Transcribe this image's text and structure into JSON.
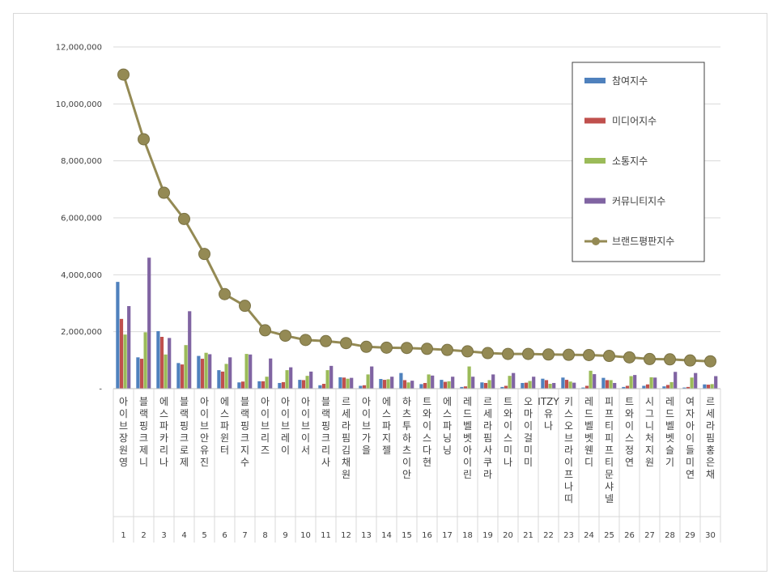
{
  "chart_data": {
    "type": "bar",
    "ylim": [
      0,
      12000000
    ],
    "y_ticks": [
      "-",
      "2,000,000",
      "4,000,000",
      "6,000,000",
      "8,000,000",
      "10,000,000",
      "12,000,000"
    ],
    "grid": "horizontal",
    "legend_position": "top-right",
    "categories": [
      "아이브 장원영",
      "블랙핑크 제니",
      "에스파 카리나",
      "블랙핑크 로제",
      "아이브 안유진",
      "에스파 윈터",
      "블랙핑크 지수",
      "아이브 리즈",
      "아이브 레이",
      "아이브 이서",
      "블랙핑크 리사",
      "르세라핌 김채원",
      "아이브 가을",
      "에스파 지젤",
      "하츠투하츠 이안",
      "트와이스 다현",
      "에스파 닝닝",
      "레드벨벳 아이린",
      "르세라핌 사쿠라",
      "트와이스 미나",
      "오마이걸 미미",
      "ITZY 유나",
      "키스오브라이프 나띠",
      "레드벨벳 웬디",
      "피프티피프티 문샤넬",
      "트와이스 정연",
      "시그니처 지원",
      "레드벨벳 슬기",
      "여자아이들 미연",
      "르세라핌 홍은채"
    ],
    "category_lines": [
      [
        "아",
        "이",
        "브",
        "장",
        "원",
        "영"
      ],
      [
        "블",
        "랙",
        "핑",
        "크",
        "제",
        "니"
      ],
      [
        "에",
        "스",
        "파",
        "카",
        "리",
        "나"
      ],
      [
        "블",
        "랙",
        "핑",
        "크",
        "로",
        "제"
      ],
      [
        "아",
        "이",
        "브",
        "안",
        "유",
        "진"
      ],
      [
        "에",
        "스",
        "파",
        "윈",
        "터"
      ],
      [
        "블",
        "랙",
        "핑",
        "크",
        "지",
        "수"
      ],
      [
        "아",
        "이",
        "브",
        "리",
        "즈"
      ],
      [
        "아",
        "이",
        "브",
        "레",
        "이"
      ],
      [
        "아",
        "이",
        "브",
        "이",
        "서"
      ],
      [
        "블",
        "랙",
        "핑",
        "크",
        "리",
        "사"
      ],
      [
        "르",
        "세",
        "라",
        "핌",
        "김",
        "채",
        "원"
      ],
      [
        "아",
        "이",
        "브",
        "가",
        "을"
      ],
      [
        "에",
        "스",
        "파",
        "지",
        "젤"
      ],
      [
        "하",
        "츠",
        "투",
        "하",
        "츠",
        "이",
        "안"
      ],
      [
        "트",
        "와",
        "이",
        "스",
        "다",
        "현"
      ],
      [
        "에",
        "스",
        "파",
        "닝",
        "닝"
      ],
      [
        "레",
        "드",
        "벨",
        "벳",
        "아",
        "이",
        "린"
      ],
      [
        "르",
        "세",
        "라",
        "핌",
        "사",
        "쿠",
        "라"
      ],
      [
        "트",
        "와",
        "이",
        "스",
        "미",
        "나"
      ],
      [
        "오",
        "마",
        "이",
        "걸",
        "미",
        "미"
      ],
      [
        "ITZY",
        "유",
        "나"
      ],
      [
        "키",
        "스",
        "오",
        "브",
        "라",
        "이",
        "프",
        "나",
        "띠"
      ],
      [
        "레",
        "드",
        "벨",
        "벳",
        "웬",
        "디"
      ],
      [
        "피",
        "프",
        "티",
        "피",
        "프",
        "티",
        "문",
        "샤",
        "넬"
      ],
      [
        "트",
        "와",
        "이",
        "스",
        "정",
        "연"
      ],
      [
        "시",
        "그",
        "니",
        "처",
        "지",
        "원"
      ],
      [
        "레",
        "드",
        "벨",
        "벳",
        "슬",
        "기"
      ],
      [
        "여",
        "자",
        "아",
        "이",
        "들",
        "미",
        "연"
      ],
      [
        "르",
        "세",
        "라",
        "핌",
        "홍",
        "은",
        "채"
      ]
    ],
    "ranks": [
      "1",
      "2",
      "3",
      "4",
      "5",
      "6",
      "7",
      "8",
      "9",
      "10",
      "11",
      "12",
      "13",
      "14",
      "15",
      "16",
      "17",
      "18",
      "19",
      "20",
      "21",
      "22",
      "23",
      "24",
      "25",
      "26",
      "27",
      "28",
      "29",
      "30"
    ],
    "series": [
      {
        "name": "참여지수",
        "kind": "bar",
        "color": "#4f81bd",
        "values": [
          3750000,
          1100000,
          2020000,
          900000,
          1150000,
          650000,
          220000,
          260000,
          200000,
          310000,
          120000,
          400000,
          100000,
          340000,
          550000,
          160000,
          310000,
          60000,
          220000,
          60000,
          200000,
          350000,
          390000,
          40000,
          380000,
          60000,
          100000,
          80000,
          40000,
          150000
        ]
      },
      {
        "name": "미디어지수",
        "kind": "bar",
        "color": "#c0504d",
        "values": [
          2450000,
          1050000,
          1820000,
          850000,
          1050000,
          600000,
          250000,
          260000,
          230000,
          300000,
          170000,
          390000,
          120000,
          310000,
          300000,
          200000,
          240000,
          80000,
          200000,
          100000,
          210000,
          300000,
          310000,
          100000,
          300000,
          100000,
          150000,
          130000,
          60000,
          140000
        ]
      },
      {
        "name": "소통지수",
        "kind": "bar",
        "color": "#9bbb59",
        "values": [
          1900000,
          1980000,
          1200000,
          1530000,
          1260000,
          870000,
          1220000,
          420000,
          650000,
          450000,
          650000,
          350000,
          500000,
          330000,
          220000,
          500000,
          260000,
          780000,
          300000,
          450000,
          270000,
          170000,
          250000,
          630000,
          300000,
          440000,
          400000,
          230000,
          390000,
          160000
        ]
      },
      {
        "name": "커뮤니티지수",
        "kind": "bar",
        "color": "#8064a2",
        "values": [
          2900000,
          4600000,
          1780000,
          2720000,
          1210000,
          1100000,
          1200000,
          1060000,
          750000,
          600000,
          800000,
          380000,
          780000,
          420000,
          280000,
          460000,
          420000,
          420000,
          500000,
          550000,
          420000,
          200000,
          210000,
          510000,
          200000,
          480000,
          390000,
          590000,
          550000,
          440000
        ]
      },
      {
        "name": "브랜드평판지수",
        "kind": "line",
        "color": "#948a54",
        "values": [
          11030000,
          8760000,
          6880000,
          5960000,
          4730000,
          3320000,
          2910000,
          2050000,
          1860000,
          1710000,
          1670000,
          1600000,
          1470000,
          1440000,
          1430000,
          1400000,
          1360000,
          1310000,
          1250000,
          1220000,
          1220000,
          1200000,
          1190000,
          1180000,
          1150000,
          1100000,
          1040000,
          1030000,
          990000,
          960000
        ]
      }
    ]
  }
}
